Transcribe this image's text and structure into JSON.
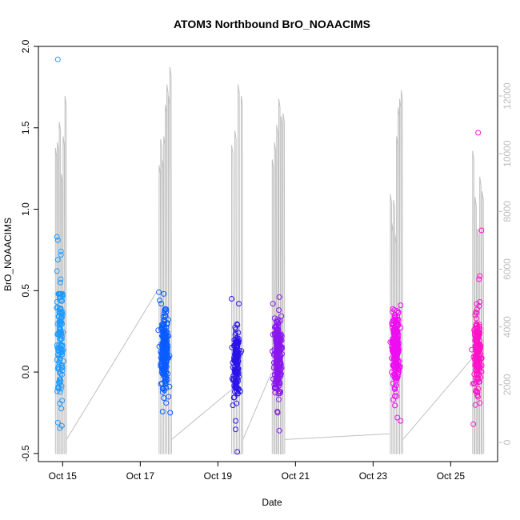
{
  "chart_data": {
    "type": "scatter",
    "title": "ATOM3 Northbound BrO_NOAACIMS",
    "xlabel": "Date",
    "ylabel": "BrO_NOAACIMS",
    "x_ticks": [
      "Oct 15",
      "Oct 17",
      "Oct 19",
      "Oct 21",
      "Oct 23",
      "Oct 25"
    ],
    "x_range": [
      "2017-10-14 09:00",
      "2017-10-26 05:00"
    ],
    "ylim": [
      -0.55,
      2.0
    ],
    "y_ticks": [
      "-0.5",
      "0.0",
      "0.5",
      "1.0",
      "1.5",
      "2.0"
    ],
    "y2lim": [
      0,
      13000
    ],
    "y2_ticks": [
      "0",
      "2000",
      "4000",
      "6000",
      "8000",
      "10000",
      "12000"
    ],
    "grid": false,
    "colors": {
      "altitude_trace": "#c0c0c0",
      "flight_1": "#1e9bff",
      "flight_2": "#0a5cff",
      "flight_3": "#2a14e6",
      "flight_4": "#8a18ee",
      "flight_5": "#ee0ef0",
      "flight_6": "#ff14c8"
    },
    "series": [
      {
        "date": "2017-10-14",
        "start_hour": 19,
        "end_hour": 26,
        "center": 0.18,
        "spread": 0.2,
        "count": 130,
        "highlights": [
          [
            21,
            1.92
          ],
          [
            20.5,
            0.83
          ],
          [
            21,
            0.81
          ],
          [
            23,
            0.74
          ],
          [
            23,
            0.72
          ],
          [
            22.8,
            0.57
          ],
          [
            22.6,
            0.55
          ],
          [
            21,
            0.69
          ],
          [
            20.5,
            0.62
          ],
          [
            21,
            -0.31
          ],
          [
            23.5,
            -0.33
          ]
        ],
        "color_key": "flight_1"
      },
      {
        "date": "2017-10-17",
        "start_hour": 11,
        "end_hour": 19,
        "center": 0.13,
        "spread": 0.11,
        "count": 260,
        "highlights": [
          [
            11.5,
            0.49
          ],
          [
            13,
            0.42
          ],
          [
            12,
            0.44
          ],
          [
            16,
            -0.19
          ],
          [
            18.5,
            -0.25
          ]
        ],
        "color_key": "flight_2"
      },
      {
        "date": "2017-10-19",
        "start_hour": 8,
        "end_hour": 15,
        "center": 0.05,
        "spread": 0.1,
        "count": 150,
        "highlights": [
          [
            8.5,
            0.45
          ],
          [
            13,
            0.42
          ],
          [
            12,
            -0.49
          ],
          [
            11,
            -0.3
          ]
        ],
        "color_key": "flight_3"
      },
      {
        "date": "2017-10-20",
        "start_hour": 9,
        "end_hour": 17,
        "center": 0.1,
        "spread": 0.12,
        "count": 260,
        "highlights": [
          [
            14,
            0.46
          ],
          [
            10,
            0.42
          ],
          [
            14,
            -0.36
          ],
          [
            13,
            -0.25
          ]
        ],
        "color_key": "flight_4"
      },
      {
        "date": "2017-10-23",
        "start_hour": 10,
        "end_hour": 18,
        "center": 0.14,
        "spread": 0.11,
        "count": 260,
        "highlights": [
          [
            17,
            0.41
          ],
          [
            12,
            0.37
          ],
          [
            15,
            -0.28
          ],
          [
            17,
            -0.3
          ]
        ],
        "color_key": "flight_5"
      },
      {
        "date": "2017-10-25",
        "start_hour": 13,
        "end_hour": 20,
        "center": 0.12,
        "spread": 0.11,
        "count": 200,
        "highlights": [
          [
            17,
            1.47
          ],
          [
            19,
            0.87
          ],
          [
            18,
            0.59
          ],
          [
            17.5,
            0.57
          ],
          [
            18,
            0.43
          ],
          [
            14,
            -0.32
          ],
          [
            18,
            -0.19
          ]
        ],
        "color_key": "flight_6"
      }
    ],
    "altitude_trace": [
      {
        "date": "2017-10-14",
        "start_hour": 19,
        "end_hour": 26,
        "peaks": [
          10200,
          10400,
          11100,
          9300,
          10600,
          12000
        ],
        "connector_end": [
          "2017-10-17 10:00",
          5200
        ]
      },
      {
        "date": "2017-10-17",
        "start_hour": 11,
        "end_hour": 19,
        "peaks": [
          9600,
          10500,
          9800,
          10600,
          11700,
          12400,
          12000,
          13000
        ],
        "connector_end": [
          "2017-10-19 10:00",
          1900
        ]
      },
      {
        "date": "2017-10-19",
        "start_hour": 8,
        "end_hour": 15,
        "peaks": [
          10300,
          10800,
          12400,
          12000
        ],
        "connector_end": [
          "2017-10-20 09:00",
          2400
        ]
      },
      {
        "date": "2017-10-20",
        "start_hour": 9,
        "end_hour": 17,
        "peaks": [
          9800,
          10400,
          11000,
          11900,
          11300,
          11400
        ],
        "connector_end": [
          "2017-10-23 10:00",
          300
        ]
      },
      {
        "date": "2017-10-23",
        "start_hour": 10,
        "end_hour": 18,
        "peaks": [
          8600,
          7600,
          8400,
          7200,
          10600,
          11600,
          11900,
          12200
        ],
        "connector_end": [
          "2017-10-25 13:00",
          2900
        ]
      },
      {
        "date": "2017-10-25",
        "start_hour": 13,
        "end_hour": 20,
        "peaks": [
          10100,
          8500,
          7400,
          9200,
          8700
        ],
        "connector_end": null
      }
    ]
  }
}
